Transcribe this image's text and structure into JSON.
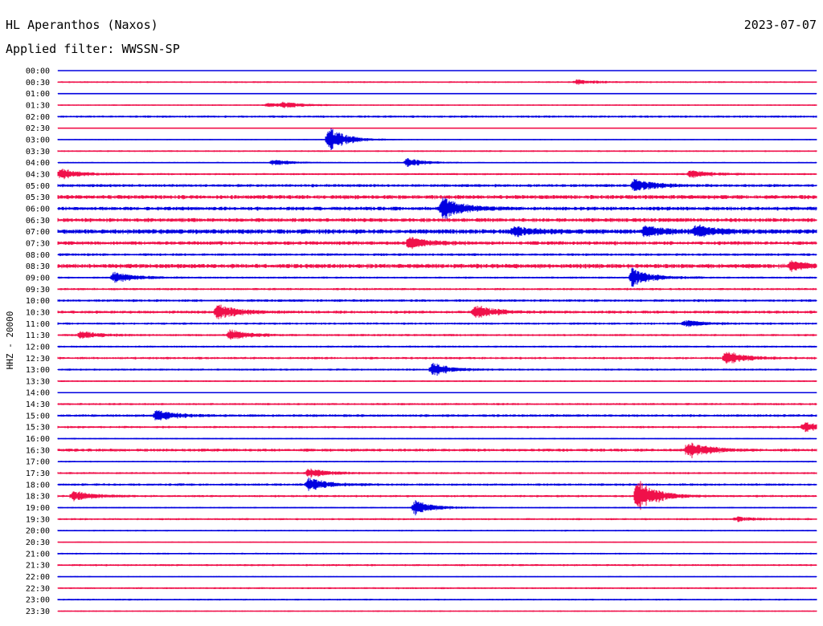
{
  "header": {
    "station": "HL Aperanthos (Naxos)",
    "date": "2023-07-07",
    "filter": "Applied filter: WWSSN-SP"
  },
  "chart_data": {
    "type": "line",
    "chart_kind": "helicorder",
    "channel_label": "HHZ - 20000",
    "colors": [
      "#0000e0",
      "#f0104a"
    ],
    "grid": false,
    "x_span_minutes": 30,
    "row_labels": [
      "00:00",
      "00:30",
      "01:00",
      "01:30",
      "02:00",
      "02:30",
      "03:00",
      "03:30",
      "04:00",
      "04:30",
      "05:00",
      "05:30",
      "06:00",
      "06:30",
      "07:00",
      "07:30",
      "08:00",
      "08:30",
      "09:00",
      "09:30",
      "10:00",
      "10:30",
      "11:00",
      "11:30",
      "12:00",
      "12:30",
      "13:00",
      "13:30",
      "14:00",
      "14:30",
      "15:00",
      "15:30",
      "16:00",
      "16:30",
      "17:00",
      "17:30",
      "18:00",
      "18:30",
      "19:00",
      "19:30",
      "20:00",
      "20:30",
      "21:00",
      "21:30",
      "22:00",
      "22:30",
      "23:00",
      "23:30"
    ],
    "noise_levels": [
      0.4,
      0.9,
      0.3,
      0.8,
      1.2,
      0.5,
      0.6,
      0.9,
      0.7,
      1.1,
      1.6,
      2.2,
      2.0,
      2.1,
      2.5,
      2.0,
      1.4,
      2.4,
      1.1,
      1.2,
      1.4,
      1.6,
      1.2,
      1.2,
      1.1,
      1.3,
      1.1,
      0.9,
      0.6,
      1.2,
      1.4,
      1.2,
      0.8,
      1.6,
      0.8,
      1.1,
      1.3,
      1.2,
      0.8,
      1.1,
      0.8,
      0.6,
      0.9,
      1.1,
      0.6,
      1.0,
      0.9,
      0.8
    ],
    "events": [
      {
        "row": "00:30",
        "minute": 20.5,
        "amplitude": 3
      },
      {
        "row": "01:30",
        "minute": 8.3,
        "amplitude": 3
      },
      {
        "row": "01:30",
        "minute": 8.9,
        "amplitude": 3
      },
      {
        "row": "03:00",
        "minute": 10.7,
        "amplitude": 16
      },
      {
        "row": "04:00",
        "minute": 8.5,
        "amplitude": 4
      },
      {
        "row": "04:00",
        "minute": 13.8,
        "amplitude": 6
      },
      {
        "row": "04:30",
        "minute": 0.1,
        "amplitude": 7
      },
      {
        "row": "04:30",
        "minute": 25.0,
        "amplitude": 5
      },
      {
        "row": "05:00",
        "minute": 22.8,
        "amplitude": 8
      },
      {
        "row": "06:00",
        "minute": 15.2,
        "amplitude": 14
      },
      {
        "row": "07:00",
        "minute": 18.0,
        "amplitude": 6
      },
      {
        "row": "07:00",
        "minute": 23.2,
        "amplitude": 7
      },
      {
        "row": "07:00",
        "minute": 25.2,
        "amplitude": 8
      },
      {
        "row": "07:30",
        "minute": 13.9,
        "amplitude": 7
      },
      {
        "row": "08:30",
        "minute": 29.0,
        "amplitude": 6
      },
      {
        "row": "09:00",
        "minute": 2.2,
        "amplitude": 7
      },
      {
        "row": "09:00",
        "minute": 22.7,
        "amplitude": 12
      },
      {
        "row": "10:30",
        "minute": 6.3,
        "amplitude": 10
      },
      {
        "row": "10:30",
        "minute": 16.5,
        "amplitude": 9
      },
      {
        "row": "11:00",
        "minute": 24.8,
        "amplitude": 4
      },
      {
        "row": "11:30",
        "minute": 0.9,
        "amplitude": 5
      },
      {
        "row": "11:30",
        "minute": 6.8,
        "amplitude": 7
      },
      {
        "row": "12:30",
        "minute": 26.4,
        "amplitude": 9
      },
      {
        "row": "13:00",
        "minute": 14.8,
        "amplitude": 8
      },
      {
        "row": "15:00",
        "minute": 3.9,
        "amplitude": 7
      },
      {
        "row": "15:30",
        "minute": 29.5,
        "amplitude": 6
      },
      {
        "row": "16:30",
        "minute": 24.9,
        "amplitude": 11
      },
      {
        "row": "17:30",
        "minute": 9.9,
        "amplitude": 6
      },
      {
        "row": "18:00",
        "minute": 9.9,
        "amplitude": 9
      },
      {
        "row": "18:30",
        "minute": 22.9,
        "amplitude": 22
      },
      {
        "row": "18:30",
        "minute": 0.6,
        "amplitude": 7
      },
      {
        "row": "19:00",
        "minute": 14.1,
        "amplitude": 9
      },
      {
        "row": "19:30",
        "minute": 26.8,
        "amplitude": 3
      }
    ]
  }
}
